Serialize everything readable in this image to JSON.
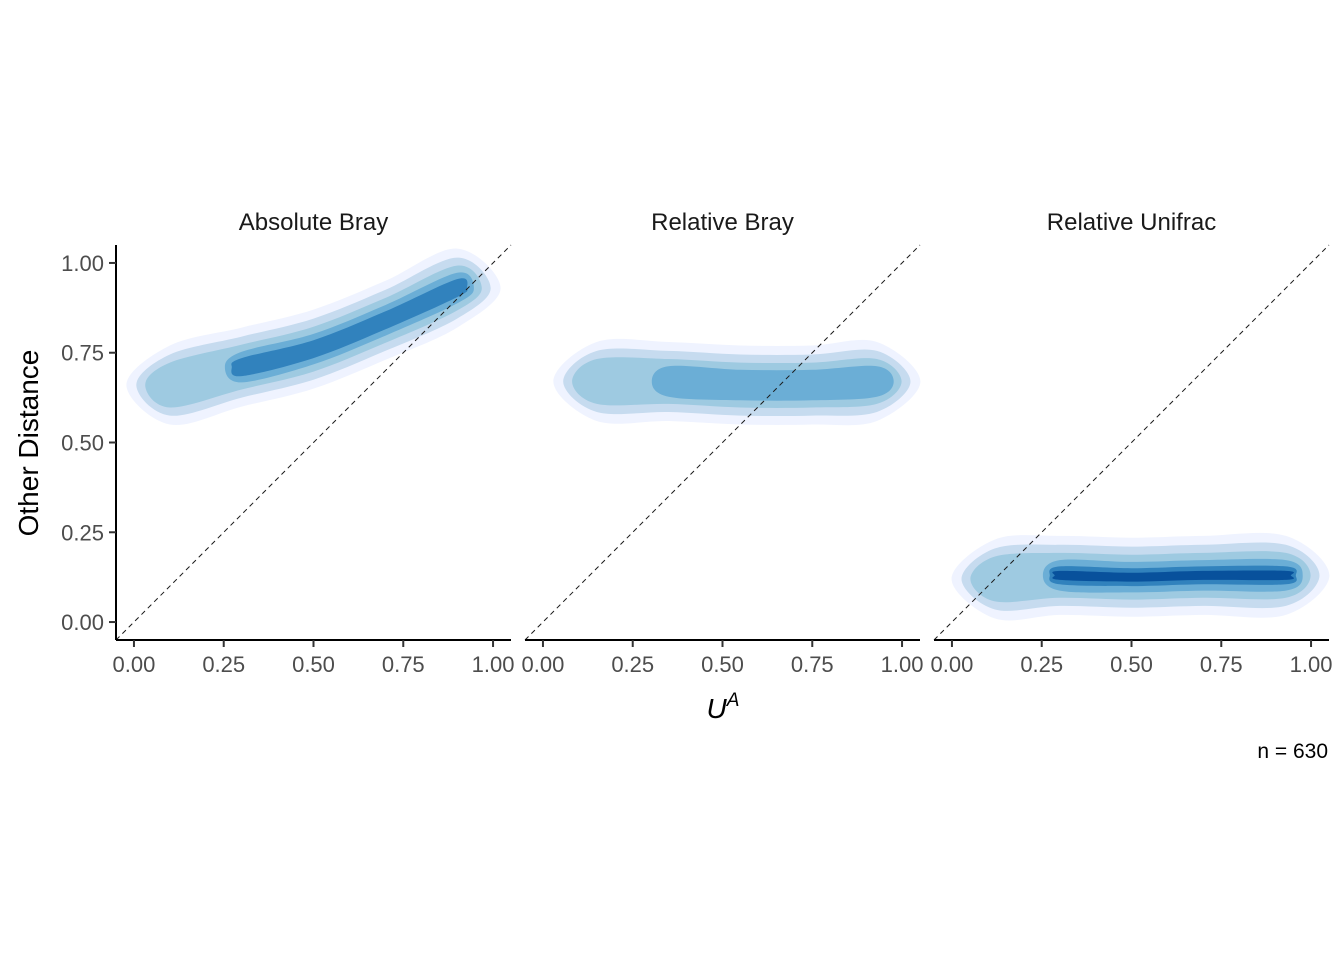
{
  "chart_data": {
    "type": "density",
    "title": "",
    "xlabel": "U",
    "xlabel_superscript": "A",
    "ylabel": "Other Distance",
    "caption": "n = 630",
    "xlim": [
      -0.05,
      1.05
    ],
    "ylim": [
      -0.05,
      1.05
    ],
    "x_ticks": [
      0.0,
      0.25,
      0.5,
      0.75,
      1.0
    ],
    "x_tick_labels": [
      "0.00",
      "0.25",
      "0.50",
      "0.75",
      "1.00"
    ],
    "y_ticks": [
      0.0,
      0.25,
      0.5,
      0.75,
      1.0
    ],
    "y_tick_labels": [
      "0.00",
      "0.25",
      "0.50",
      "0.75",
      "1.00"
    ],
    "reference_line": {
      "style": "dashed",
      "intercept": 0,
      "slope": 1
    },
    "grid": false,
    "colors": {
      "levels": [
        "#eff3ff",
        "#c6dbef",
        "#9ecae1",
        "#6baed6",
        "#3182bd",
        "#08519c"
      ]
    },
    "panels": [
      {
        "title": "Absolute Bray",
        "density_ridge": [
          [
            0.1,
            0.66
          ],
          [
            0.3,
            0.71
          ],
          [
            0.5,
            0.76
          ],
          [
            0.7,
            0.84
          ],
          [
            0.9,
            0.93
          ]
        ],
        "peak_level": 5
      },
      {
        "title": "Relative Bray",
        "density_ridge": [
          [
            0.15,
            0.67
          ],
          [
            0.35,
            0.67
          ],
          [
            0.55,
            0.66
          ],
          [
            0.75,
            0.66
          ],
          [
            0.93,
            0.67
          ]
        ],
        "peak_level": 4
      },
      {
        "title": "Relative Unifrac",
        "density_ridge": [
          [
            0.12,
            0.12
          ],
          [
            0.3,
            0.13
          ],
          [
            0.5,
            0.125
          ],
          [
            0.7,
            0.13
          ],
          [
            0.93,
            0.13
          ]
        ],
        "peak_level": 6
      }
    ]
  }
}
